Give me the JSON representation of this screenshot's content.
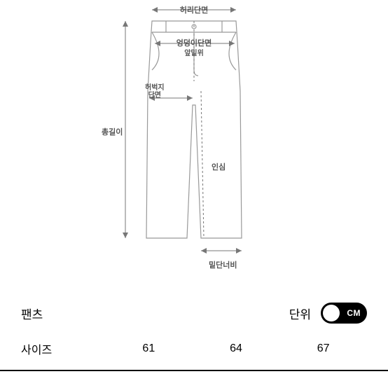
{
  "diagram": {
    "labels": {
      "waist": "허리단면",
      "hip": "엉덩이단면",
      "front_rise": "앞밑위",
      "thigh": "허벅지\n단면",
      "total_length": "총길이",
      "inseam": "인심",
      "hem": "밑단너비"
    },
    "stroke": "#888888",
    "label_color": "#555555",
    "label_fontsize": 11
  },
  "category": "팬츠",
  "unit": {
    "label": "단위",
    "active": "CM"
  },
  "size_table": {
    "header": "사이즈",
    "values": [
      "61",
      "64",
      "67"
    ]
  }
}
